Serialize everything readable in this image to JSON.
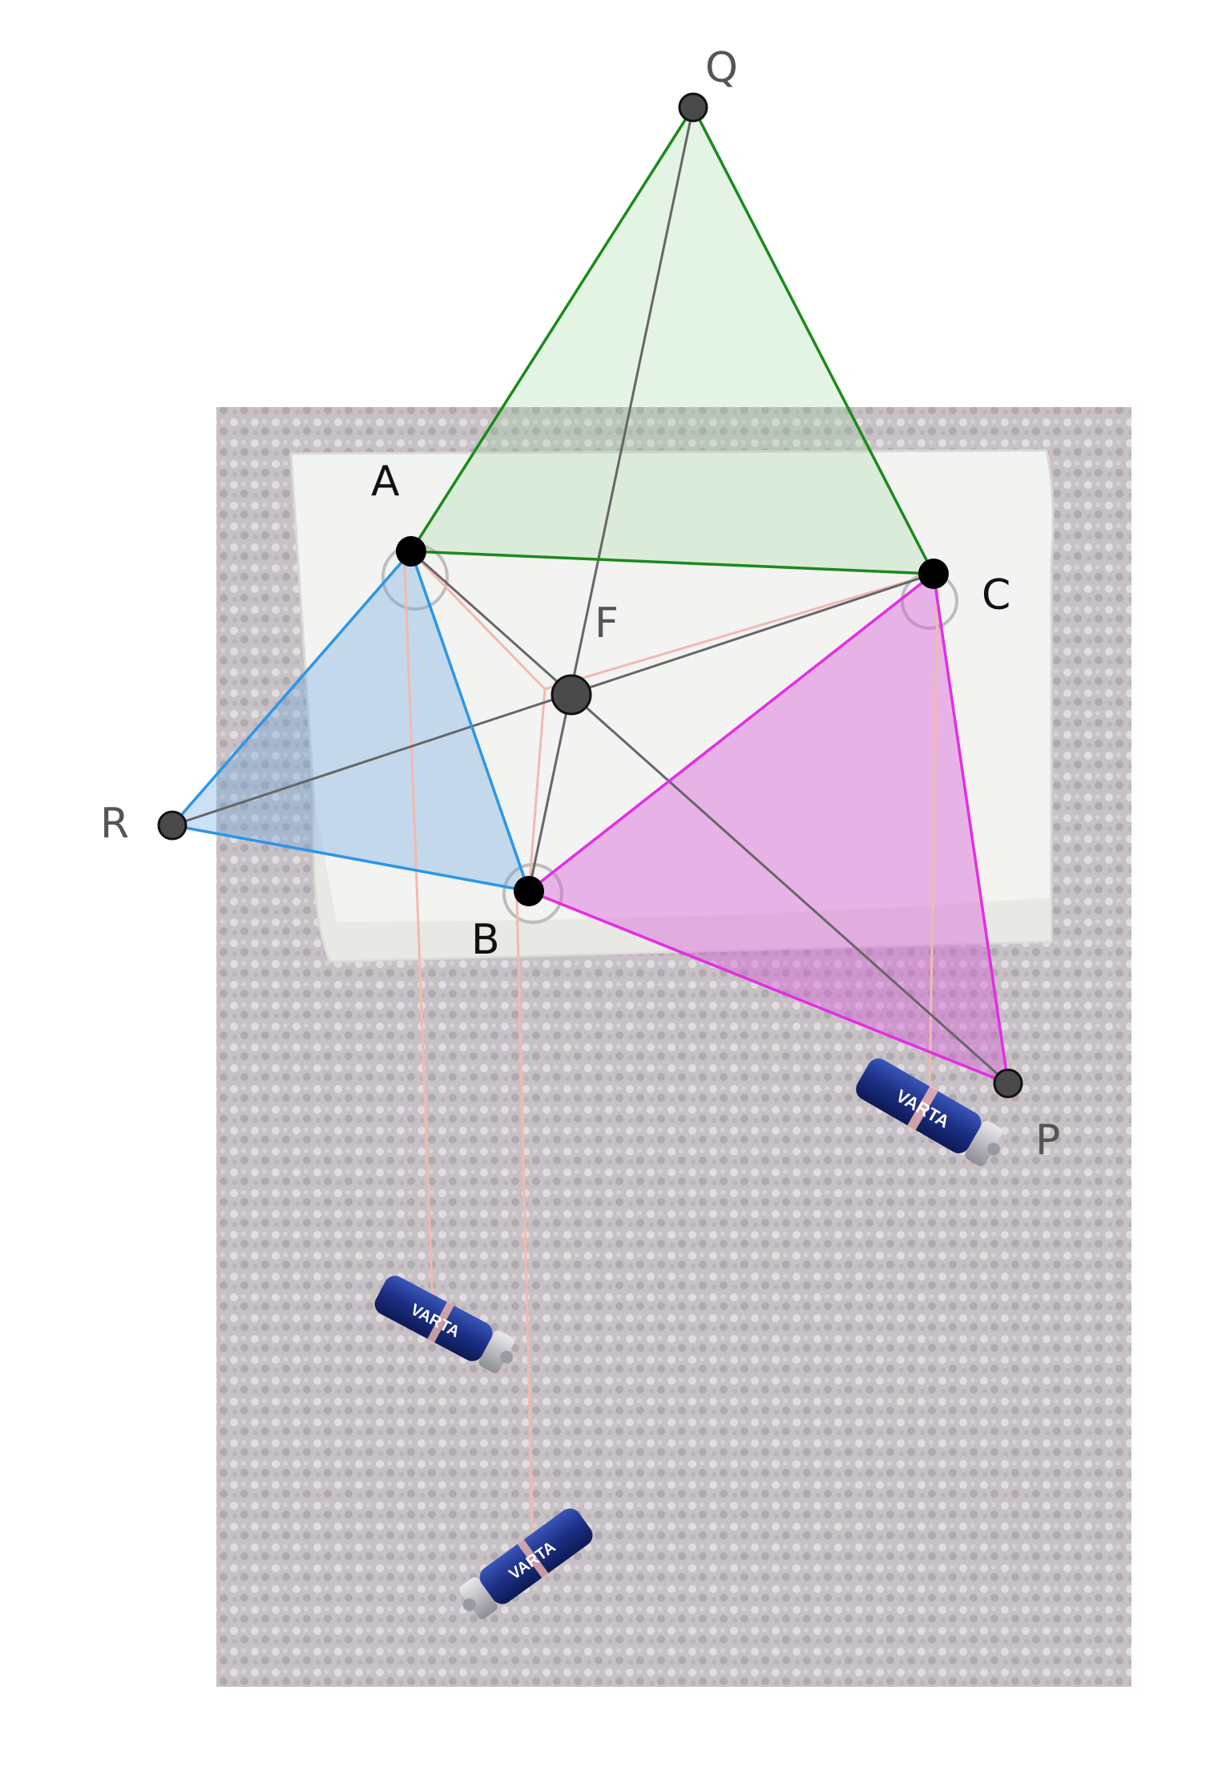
{
  "labels": {
    "A": "A",
    "B": "B",
    "C": "C",
    "F": "F",
    "P": "P",
    "Q": "Q",
    "R": "R"
  },
  "battery_brand": "VARTA",
  "colors": {
    "green": "#1b8a1b",
    "blue": "#2b96e8",
    "magenta": "#e32ee3",
    "gray": "#666666",
    "string": "#f2b9b0"
  },
  "icons": {
    "battery": "battery-icon",
    "suction_cup": "suction-cup-icon"
  }
}
